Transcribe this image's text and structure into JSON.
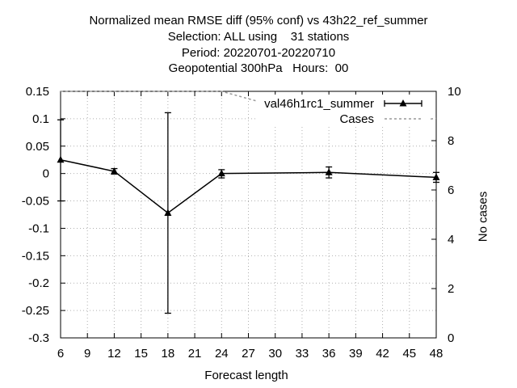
{
  "chart_data": {
    "type": "line",
    "title": [
      "Normalized mean RMSE diff (95% conf) vs 43h22_ref_summer",
      "Selection: ALL using    31 stations",
      "Period: 20220701-20220710",
      "Geopotential 300hPa   Hours:  00"
    ],
    "xlabel": "Forecast length",
    "y2label": "No cases",
    "xlim": [
      6,
      48
    ],
    "ylim": [
      -0.3,
      0.15
    ],
    "y2lim": [
      0,
      10
    ],
    "xticks": [
      "6",
      "9",
      "12",
      "15",
      "18",
      "21",
      "24",
      "27",
      "30",
      "33",
      "36",
      "39",
      "42",
      "45",
      "48"
    ],
    "yticks": [
      "0.15",
      "0.1",
      "0.05",
      "0",
      "-0.05",
      "-0.1",
      "-0.15",
      "-0.2",
      "-0.25",
      "-0.3"
    ],
    "y2ticks": [
      "10",
      "8",
      "6",
      "4",
      "2",
      "0"
    ],
    "grid": true,
    "legend_position": "top-right",
    "series": [
      {
        "name": "val46h1rc1_summer",
        "color": "#000000",
        "marker": "triangle",
        "x": [
          6,
          12,
          18,
          24,
          36,
          48
        ],
        "y": [
          0.025,
          0.004,
          -0.072,
          0.0,
          0.002,
          -0.007
        ],
        "err_low": [
          -0.05,
          -0.001,
          -0.255,
          -0.008,
          -0.008,
          -0.016
        ],
        "err_high": [
          0.098,
          0.009,
          0.111,
          0.007,
          0.012,
          0.002
        ]
      }
    ],
    "cases": {
      "name": "Cases",
      "color": "#999999",
      "style": "dashed",
      "x": [
        6,
        24,
        27,
        30,
        33,
        36,
        39,
        42,
        45,
        48
      ],
      "y": [
        10,
        10,
        9.7,
        9.4,
        9.2,
        9.0,
        8.9,
        8.8,
        8.8,
        8.9
      ]
    }
  }
}
